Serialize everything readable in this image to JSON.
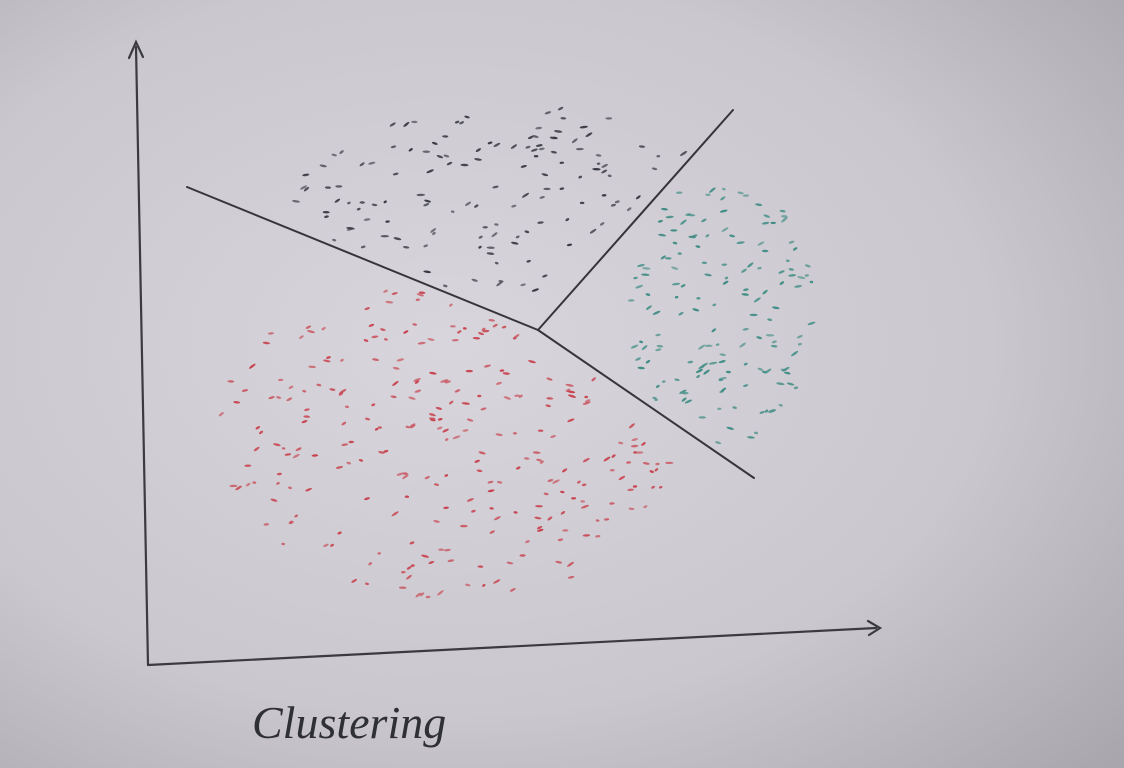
{
  "caption": "Clustering"
}
